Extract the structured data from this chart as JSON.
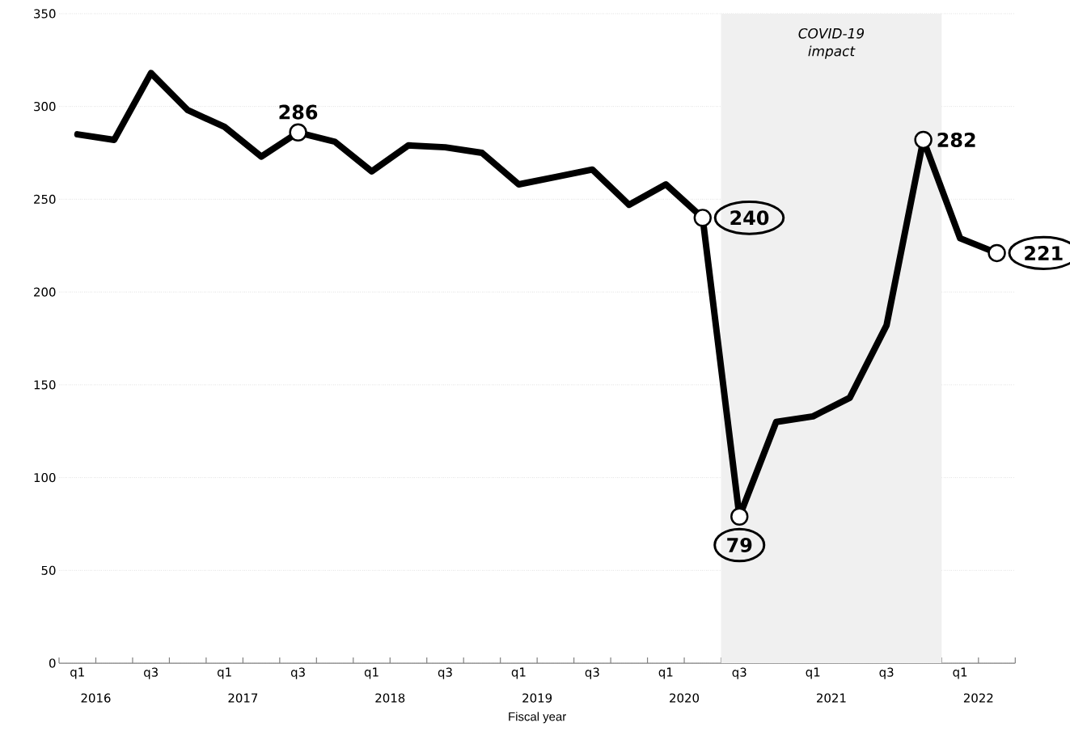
{
  "chart_data": {
    "type": "line",
    "xlabel": "Fiscal year",
    "color": "#000000",
    "line_style": "solid",
    "grid": "y",
    "categories": [
      "q1",
      null,
      "q3",
      null,
      "q1",
      null,
      "q3",
      null,
      "q1",
      null,
      "q3",
      null,
      "q1",
      null,
      "q3",
      null,
      "q1",
      null,
      "q3",
      null,
      "q1",
      null,
      "q3",
      null,
      "q1",
      null
    ],
    "values": [
      285,
      282,
      318,
      298,
      289,
      273,
      286,
      281,
      265,
      279,
      278,
      275,
      258,
      262,
      266,
      247,
      258,
      240,
      79,
      130,
      133,
      143,
      182,
      282,
      229,
      221
    ],
    "value_labels": [
      null,
      null,
      null,
      null,
      null,
      null,
      "286",
      null,
      null,
      null,
      null,
      null,
      null,
      null,
      null,
      null,
      null,
      "240",
      "79",
      null,
      null,
      null,
      null,
      "282",
      null,
      "221"
    ],
    "ylim": [
      0,
      350
    ],
    "yticks": [
      0,
      50,
      100,
      150,
      200,
      250,
      300,
      350
    ],
    "annotations": [
      "COVID-19 impact",
      "2016",
      "2017",
      "2018",
      "2019",
      "2020",
      "2021",
      "2022"
    ]
  }
}
